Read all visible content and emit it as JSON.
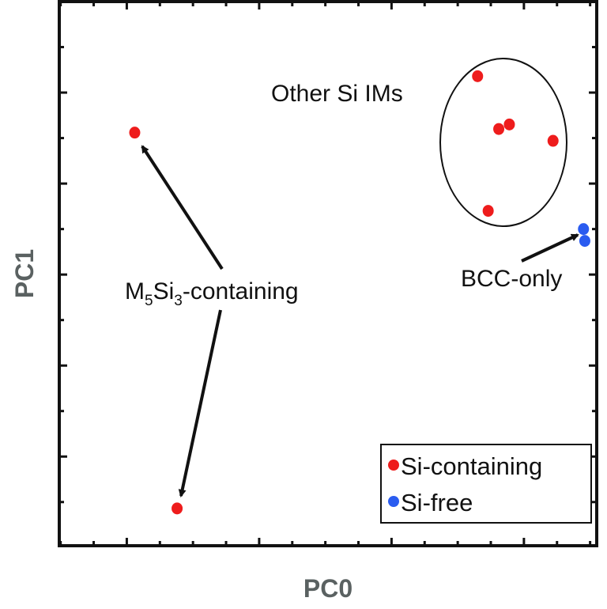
{
  "chart_data": {
    "type": "scatter",
    "title": "",
    "xlabel": "PC0",
    "ylabel": "PC1",
    "xlim": [
      -0.51,
      3.55
    ],
    "ylim": [
      -0.98,
      5.0
    ],
    "x_major_ticks": [
      0,
      1,
      2,
      3
    ],
    "y_major_ticks": [
      0,
      1,
      2,
      3,
      4
    ],
    "tick_labels_shown": false,
    "grid": false,
    "legend_position": "bottom-right",
    "series": [
      {
        "name": "Si-containing",
        "color": "#ee1c1c",
        "points": [
          [
            0.06,
            3.56
          ],
          [
            0.38,
            -0.57
          ],
          [
            2.65,
            4.18
          ],
          [
            2.81,
            3.6
          ],
          [
            2.89,
            3.65
          ],
          [
            3.22,
            3.47
          ],
          [
            2.73,
            2.7
          ]
        ]
      },
      {
        "name": "Si-free",
        "color": "#2a5cf0",
        "points": [
          [
            3.45,
            2.5
          ],
          [
            3.46,
            2.37
          ]
        ]
      }
    ],
    "annotations": {
      "cluster_label": "Other Si IMs",
      "m5si3": {
        "base": "M",
        "sub1": "5",
        "mid": "Si",
        "sub2": "3",
        "tail": "-containing"
      },
      "bcc_label": "BCC-only"
    }
  }
}
